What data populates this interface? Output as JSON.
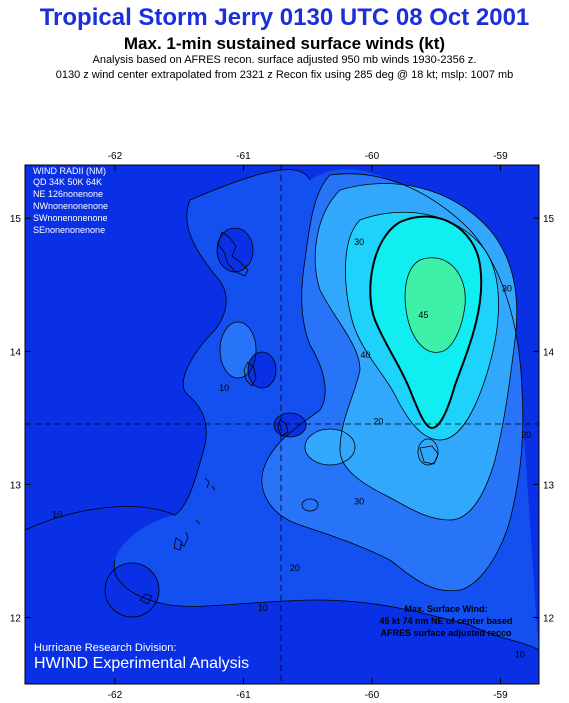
{
  "header": {
    "title": "Tropical Storm Jerry 0130 UTC 08 Oct 2001",
    "subtitle": "Max. 1-min sustained surface winds (kt)",
    "line1": "Analysis based on AFRES recon. surface adjusted 950 mb winds 1930-2356 z.",
    "line2": "0130 z wind center extrapolated from 2321 z Recon fix using 285 deg @ 18 kt; mslp: 1007 mb"
  },
  "wind_radii": {
    "title": "WIND RADII (NM)",
    "header": "QD  34K  50K  64K",
    "rows": [
      "NE  126nonenone",
      "NWnonenonenone",
      "SWnonenonenone",
      "SEnonenonenone"
    ]
  },
  "max_wind": {
    "line1": "Max. Surface Wind:",
    "line2": "45 kt 74 nm NE of center based",
    "line3": "AFRES surface adjusted recco"
  },
  "credit": {
    "line1": "Hurricane Research Division:",
    "line2": "HWIND Experimental Analysis"
  },
  "colors": {
    "c0": "#0a30e6",
    "c10": "#1450f0",
    "c20": "#2874f8",
    "c30": "#32a8fc",
    "c35": "#1ed2fc",
    "c40": "#10eef2",
    "c45": "#3cf0a8"
  },
  "chart_data": {
    "type": "contour",
    "xlim": [
      -62.7,
      -58.7
    ],
    "ylim": [
      11.5,
      15.4
    ],
    "x_ticks": [
      -62,
      -61,
      -60,
      -59
    ],
    "y_ticks": [
      12,
      13,
      14,
      15
    ],
    "x_tick_labels": [
      "-62",
      "-61",
      "-60",
      "-59"
    ],
    "y_tick_labels": [
      "12",
      "13",
      "14",
      "15"
    ],
    "storm_center": {
      "lon": -60.7,
      "lat": 13.4
    },
    "contour_levels": [
      10,
      20,
      30,
      40,
      45
    ],
    "contour_labels": [
      {
        "text": "10",
        "lon": -62.45,
        "lat": 12.75
      },
      {
        "text": "10",
        "lon": -60.85,
        "lat": 12.05
      },
      {
        "text": "10",
        "lon": -61.15,
        "lat": 13.7
      },
      {
        "text": "10",
        "lon": -58.85,
        "lat": 11.7
      },
      {
        "text": "20",
        "lon": -60.6,
        "lat": 12.35
      },
      {
        "text": "20",
        "lon": -59.95,
        "lat": 13.45
      },
      {
        "text": "20",
        "lon": -58.8,
        "lat": 13.35
      },
      {
        "text": "30",
        "lon": -60.1,
        "lat": 14.8
      },
      {
        "text": "30",
        "lon": -60.1,
        "lat": 12.85
      },
      {
        "text": "30",
        "lon": -58.95,
        "lat": 14.45
      },
      {
        "text": "40",
        "lon": -60.05,
        "lat": 13.95
      },
      {
        "text": "45",
        "lon": -59.6,
        "lat": 14.25
      }
    ],
    "max_wind_kt": 45
  }
}
